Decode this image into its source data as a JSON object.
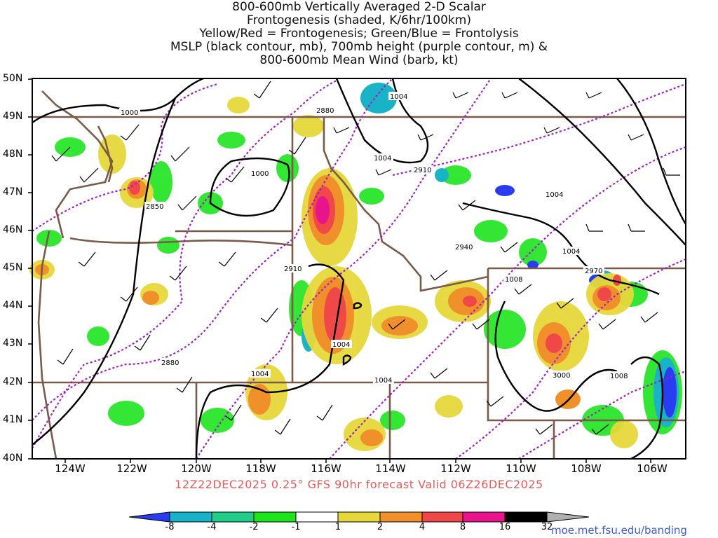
{
  "title_lines": [
    "800-600mb Vertically Averaged 2-D Scalar",
    "Frontogenesis (shaded, K/6hr/100km)",
    "Yellow/Red = Frontogenesis;  Green/Blue = Frontolysis",
    "MSLP (black contour, mb), 700mb height (purple contour, m) &",
    "800-600mb Mean Wind (barb, kt)"
  ],
  "lat_labels": [
    "50N",
    "49N",
    "48N",
    "47N",
    "46N",
    "45N",
    "44N",
    "43N",
    "42N",
    "41N",
    "40N"
  ],
  "lon_labels": [
    "124W",
    "122W",
    "120W",
    "118W",
    "116W",
    "114W",
    "112W",
    "110W",
    "108W",
    "106W"
  ],
  "valid_text": "12Z22DEC2025 0.25° GFS 90hr forecast Valid 06Z26DEC2025",
  "colorbar": {
    "labels": [
      "-8",
      "-4",
      "-2",
      "-1",
      "1",
      "2",
      "4",
      "8",
      "16",
      "32"
    ],
    "colors": [
      "#2a3cf0",
      "#19b3c8",
      "#22cc8a",
      "#1ee41e",
      "#ffffff",
      "#e6d83a",
      "#f0902a",
      "#f04848",
      "#e8148c",
      "#000000",
      "#b0b0b0"
    ]
  },
  "contour_labels": {
    "mslp": [
      "1000",
      "1000",
      "1004",
      "1004",
      "1004",
      "1004",
      "1004",
      "1004",
      "1008",
      "1004",
      "1008"
    ],
    "height": [
      "2880",
      "2850",
      "2910",
      "2940",
      "2910",
      "2970",
      "2880",
      "3000"
    ]
  },
  "colors": {
    "mslp": "#000000",
    "height": "#a020c0",
    "border": "#7a5a48"
  },
  "credit": "moe.met.fsu.edu/banding"
}
